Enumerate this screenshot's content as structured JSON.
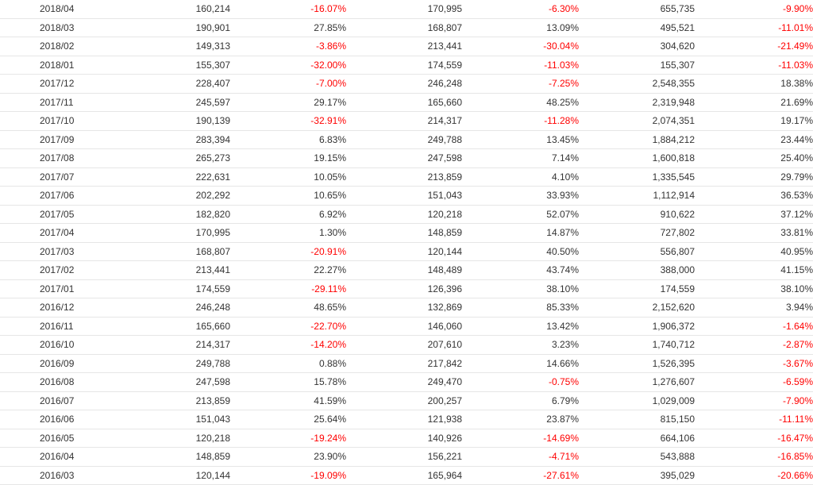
{
  "colors": {
    "negative": "#ff0000",
    "text": "#333333",
    "row_border": "#e6e6e6"
  },
  "rows": [
    [
      "2018/04",
      "160,214",
      "-16.07%",
      "170,995",
      "-6.30%",
      "655,735",
      "-9.90%"
    ],
    [
      "2018/03",
      "190,901",
      "27.85%",
      "168,807",
      "13.09%",
      "495,521",
      "-11.01%"
    ],
    [
      "2018/02",
      "149,313",
      "-3.86%",
      "213,441",
      "-30.04%",
      "304,620",
      "-21.49%"
    ],
    [
      "2018/01",
      "155,307",
      "-32.00%",
      "174,559",
      "-11.03%",
      "155,307",
      "-11.03%"
    ],
    [
      "2017/12",
      "228,407",
      "-7.00%",
      "246,248",
      "-7.25%",
      "2,548,355",
      "18.38%"
    ],
    [
      "2017/11",
      "245,597",
      "29.17%",
      "165,660",
      "48.25%",
      "2,319,948",
      "21.69%"
    ],
    [
      "2017/10",
      "190,139",
      "-32.91%",
      "214,317",
      "-11.28%",
      "2,074,351",
      "19.17%"
    ],
    [
      "2017/09",
      "283,394",
      "6.83%",
      "249,788",
      "13.45%",
      "1,884,212",
      "23.44%"
    ],
    [
      "2017/08",
      "265,273",
      "19.15%",
      "247,598",
      "7.14%",
      "1,600,818",
      "25.40%"
    ],
    [
      "2017/07",
      "222,631",
      "10.05%",
      "213,859",
      "4.10%",
      "1,335,545",
      "29.79%"
    ],
    [
      "2017/06",
      "202,292",
      "10.65%",
      "151,043",
      "33.93%",
      "1,112,914",
      "36.53%"
    ],
    [
      "2017/05",
      "182,820",
      "6.92%",
      "120,218",
      "52.07%",
      "910,622",
      "37.12%"
    ],
    [
      "2017/04",
      "170,995",
      "1.30%",
      "148,859",
      "14.87%",
      "727,802",
      "33.81%"
    ],
    [
      "2017/03",
      "168,807",
      "-20.91%",
      "120,144",
      "40.50%",
      "556,807",
      "40.95%"
    ],
    [
      "2017/02",
      "213,441",
      "22.27%",
      "148,489",
      "43.74%",
      "388,000",
      "41.15%"
    ],
    [
      "2017/01",
      "174,559",
      "-29.11%",
      "126,396",
      "38.10%",
      "174,559",
      "38.10%"
    ],
    [
      "2016/12",
      "246,248",
      "48.65%",
      "132,869",
      "85.33%",
      "2,152,620",
      "3.94%"
    ],
    [
      "2016/11",
      "165,660",
      "-22.70%",
      "146,060",
      "13.42%",
      "1,906,372",
      "-1.64%"
    ],
    [
      "2016/10",
      "214,317",
      "-14.20%",
      "207,610",
      "3.23%",
      "1,740,712",
      "-2.87%"
    ],
    [
      "2016/09",
      "249,788",
      "0.88%",
      "217,842",
      "14.66%",
      "1,526,395",
      "-3.67%"
    ],
    [
      "2016/08",
      "247,598",
      "15.78%",
      "249,470",
      "-0.75%",
      "1,276,607",
      "-6.59%"
    ],
    [
      "2016/07",
      "213,859",
      "41.59%",
      "200,257",
      "6.79%",
      "1,029,009",
      "-7.90%"
    ],
    [
      "2016/06",
      "151,043",
      "25.64%",
      "121,938",
      "23.87%",
      "815,150",
      "-11.11%"
    ],
    [
      "2016/05",
      "120,218",
      "-19.24%",
      "140,926",
      "-14.69%",
      "664,106",
      "-16.47%"
    ],
    [
      "2016/04",
      "148,859",
      "23.90%",
      "156,221",
      "-4.71%",
      "543,888",
      "-16.85%"
    ],
    [
      "2016/03",
      "120,144",
      "-19.09%",
      "165,964",
      "-27.61%",
      "395,029",
      "-20.66%"
    ]
  ]
}
